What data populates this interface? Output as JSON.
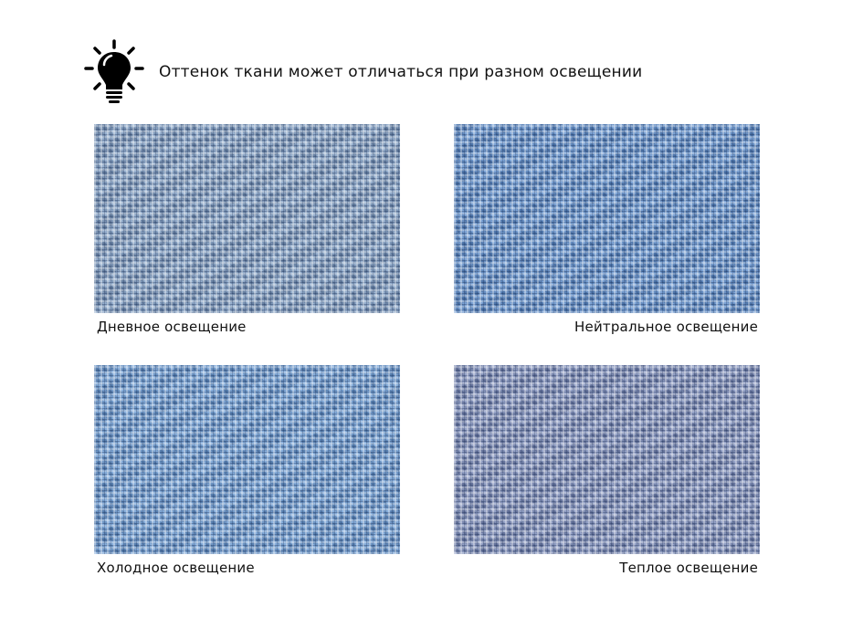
{
  "header": {
    "icon": "lightbulb-icon",
    "text": "Оттенок ткани может отличаться при разном освещении"
  },
  "swatches": [
    {
      "label": "Дневное освещение",
      "color": "#7f9dc3"
    },
    {
      "label": "Нейтральное освещение",
      "color": "#5f8fcc"
    },
    {
      "label": "Холодное освещение",
      "color": "#6b9bd3"
    },
    {
      "label": "Теплое освещение",
      "color": "#7c8cba"
    }
  ]
}
